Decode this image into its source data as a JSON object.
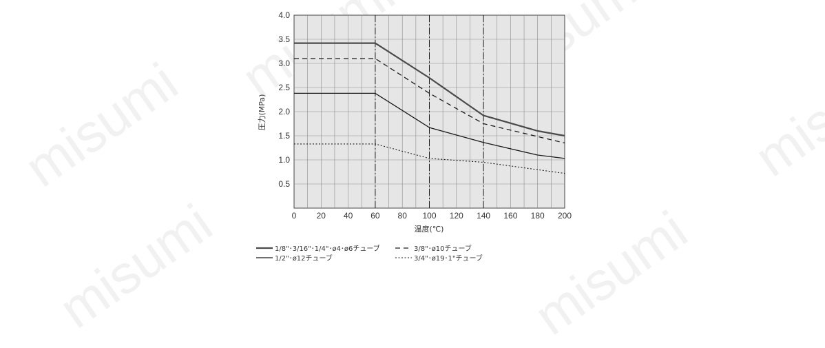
{
  "watermark": "misumi",
  "chart_data": {
    "type": "line",
    "title": "",
    "xlabel": "温度(℃)",
    "ylabel": "圧力(MPa)",
    "xlim": [
      0,
      200
    ],
    "ylim": [
      0,
      4.0
    ],
    "x_ticks": [
      "0",
      "20",
      "40",
      "60",
      "80",
      "100",
      "120",
      "140",
      "160",
      "180",
      "200"
    ],
    "y_ticks": [
      "0.5",
      "1.0",
      "1.5",
      "2.0",
      "2.5",
      "3.0",
      "3.5",
      "4.0"
    ],
    "grid": true,
    "background": "#e6e6e6",
    "vertical_dashdot_lines": [
      60,
      100,
      140
    ],
    "legend_position": "bottom",
    "series": [
      {
        "name": "1/8\"･3/16\"･1/4\"･ø4･ø6チューブ",
        "style": "solid-thick",
        "color": "#4a4a4a",
        "x": [
          0,
          60,
          100,
          140,
          180,
          200
        ],
        "y": [
          3.42,
          3.42,
          2.7,
          1.92,
          1.6,
          1.5
        ]
      },
      {
        "name": "3/8\"･ø10チューブ",
        "style": "dashed",
        "color": "#1a1a1a",
        "x": [
          0,
          60,
          100,
          140,
          200
        ],
        "y": [
          3.1,
          3.1,
          2.38,
          1.75,
          1.35
        ]
      },
      {
        "name": "1/2\"･ø12チューブ",
        "style": "solid",
        "color": "#1a1a1a",
        "x": [
          0,
          60,
          100,
          140,
          180,
          200
        ],
        "y": [
          2.38,
          2.38,
          1.67,
          1.36,
          1.1,
          1.03
        ]
      },
      {
        "name": "3/4\"･ø19･1\"チューブ",
        "style": "dotted",
        "color": "#1a1a1a",
        "x": [
          0,
          60,
          100,
          140,
          200
        ],
        "y": [
          1.33,
          1.33,
          1.03,
          0.95,
          0.72
        ]
      }
    ]
  }
}
